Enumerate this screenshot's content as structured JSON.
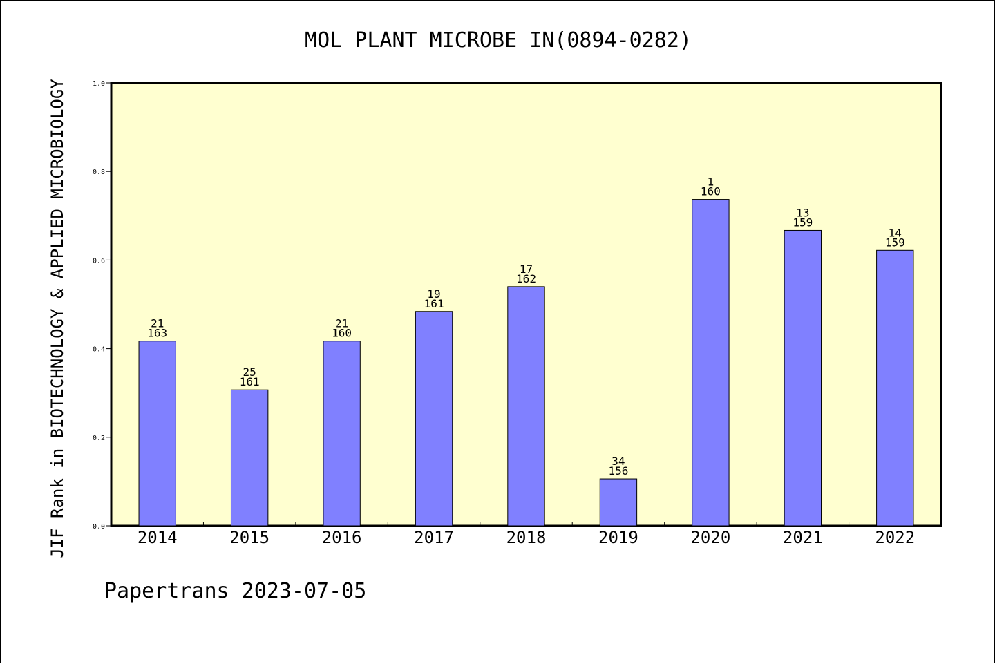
{
  "chart_data": {
    "type": "bar",
    "title": "MOL PLANT MICROBE IN(0894-0282)",
    "ylabel": "JIF Rank in BIOTECHNOLOGY & APPLIED MICROBIOLOGY",
    "xlabel": "",
    "ylim": [
      0,
      1.0
    ],
    "yticks": [
      "0.0",
      "0.2",
      "0.4",
      "0.6",
      "0.8",
      "1.0"
    ],
    "categories": [
      "2014",
      "2015",
      "2016",
      "2017",
      "2018",
      "2019",
      "2020",
      "2021",
      "2022"
    ],
    "values": [
      0.417,
      0.307,
      0.417,
      0.484,
      0.54,
      0.106,
      0.737,
      0.667,
      0.622
    ],
    "rank_labels": [
      "21",
      "25",
      "21",
      "19",
      "17",
      "34",
      "1",
      "13",
      "14"
    ],
    "total_labels": [
      "163",
      "161",
      "160",
      "161",
      "162",
      "156",
      "160",
      "159",
      "159"
    ],
    "grid": false,
    "colors": {
      "plot_background": "#ffffd0",
      "bar_fill": "#8080ff",
      "bar_stroke": "#000000"
    }
  },
  "footer": "Papertrans 2023-07-05"
}
